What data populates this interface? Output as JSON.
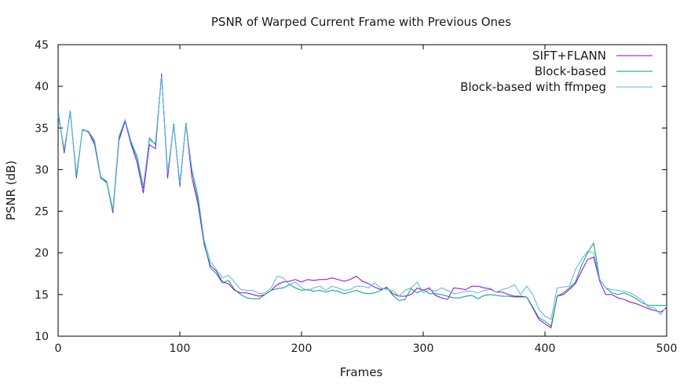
{
  "chart_data": {
    "type": "line",
    "title": "PSNR of Warped Current Frame with Previous Ones",
    "xlabel": "Frames",
    "ylabel": "PSNR (dB)",
    "xlim": [
      0,
      500
    ],
    "ylim": [
      10,
      45
    ],
    "xticks": [
      0,
      100,
      200,
      300,
      400,
      500
    ],
    "yticks": [
      10,
      15,
      20,
      25,
      30,
      35,
      40,
      45
    ],
    "grid": false,
    "legend_position": "top-right",
    "series": [
      {
        "name": "SIFT+FLANN",
        "color": "#9400d3",
        "x": [
          0,
          5,
          10,
          15,
          20,
          25,
          30,
          35,
          40,
          45,
          50,
          55,
          60,
          65,
          70,
          75,
          80,
          85,
          90,
          95,
          100,
          105,
          110,
          115,
          120,
          125,
          130,
          135,
          140,
          145,
          150,
          155,
          160,
          165,
          170,
          175,
          180,
          185,
          190,
          195,
          200,
          205,
          210,
          215,
          220,
          225,
          230,
          235,
          240,
          245,
          250,
          255,
          260,
          265,
          270,
          275,
          280,
          285,
          290,
          295,
          300,
          305,
          310,
          315,
          320,
          325,
          330,
          335,
          340,
          345,
          350,
          355,
          360,
          365,
          370,
          375,
          380,
          385,
          390,
          395,
          400,
          405,
          410,
          415,
          420,
          425,
          430,
          435,
          440,
          445,
          450,
          455,
          460,
          465,
          470,
          475,
          480,
          485,
          490,
          495,
          500
        ],
        "y": [
          37,
          32,
          37,
          29,
          34.8,
          34.5,
          33,
          29,
          28.5,
          24.8,
          33.5,
          35.8,
          33,
          30.8,
          27.2,
          33,
          32.5,
          41.5,
          29,
          35.5,
          28,
          35.5,
          29,
          25.8,
          21,
          18.5,
          17.8,
          16.5,
          16.3,
          15.5,
          15.2,
          15.2,
          15,
          14.8,
          15,
          15.5,
          16.2,
          16.5,
          16.6,
          16.8,
          16.5,
          16.8,
          16.7,
          16.8,
          16.8,
          17,
          16.8,
          16.6,
          16.8,
          17.2,
          16.6,
          16.3,
          15.9,
          15.6,
          15.8,
          15.1,
          14.8,
          14.8,
          15,
          15.8,
          15.5,
          15.8,
          14.9,
          14.6,
          14.4,
          15.8,
          15.7,
          15.6,
          16,
          16,
          15.8,
          15.7,
          15.3,
          15.3,
          15,
          14.8,
          14.8,
          14.7,
          13.4,
          12,
          11.5,
          11,
          14.8,
          15,
          15.6,
          16.3,
          17.8,
          19.2,
          19.5,
          16.6,
          15,
          15,
          14.6,
          14.4,
          14.1,
          13.9,
          13.6,
          13.3,
          13.1,
          12.9,
          13.4
        ]
      },
      {
        "name": "Block-based",
        "color": "#009e73",
        "x": [
          0,
          5,
          10,
          15,
          20,
          25,
          30,
          35,
          40,
          45,
          50,
          55,
          60,
          65,
          70,
          75,
          80,
          85,
          90,
          95,
          100,
          105,
          110,
          115,
          120,
          125,
          130,
          135,
          140,
          145,
          150,
          155,
          160,
          165,
          170,
          175,
          180,
          185,
          190,
          195,
          200,
          205,
          210,
          215,
          220,
          225,
          230,
          235,
          240,
          245,
          250,
          255,
          260,
          265,
          270,
          275,
          280,
          285,
          290,
          295,
          300,
          305,
          310,
          315,
          320,
          325,
          330,
          335,
          340,
          345,
          350,
          355,
          360,
          365,
          370,
          375,
          380,
          385,
          390,
          395,
          400,
          405,
          410,
          415,
          420,
          425,
          430,
          435,
          440,
          445,
          450,
          455,
          460,
          465,
          470,
          475,
          480,
          485,
          490,
          495,
          500
        ],
        "y": [
          36.8,
          32.2,
          37,
          29.2,
          34.8,
          34.6,
          33.3,
          29,
          28.4,
          25,
          33.8,
          36,
          33.2,
          31.3,
          27.8,
          33.8,
          33,
          41.3,
          29.5,
          35.5,
          28.2,
          35.6,
          29.8,
          26.3,
          21.2,
          18.2,
          17.5,
          16.4,
          16.7,
          15.6,
          15,
          14.6,
          14.5,
          14.5,
          15,
          15.5,
          15.7,
          15.8,
          16.2,
          15.8,
          15.5,
          15.6,
          15.4,
          15.5,
          15.3,
          15.5,
          15.4,
          15.1,
          15.3,
          15.5,
          15.2,
          15.1,
          15.2,
          15.5,
          15.9,
          14.9,
          14.3,
          14.4,
          15.7,
          15.2,
          15.6,
          15.1,
          15.1,
          15,
          14.8,
          14.6,
          14.6,
          14.8,
          14.9,
          14.5,
          14.9,
          15,
          14.9,
          14.8,
          14.8,
          14.7,
          14.7,
          14.7,
          13.5,
          12.2,
          11.8,
          11.2,
          14.8,
          15.2,
          15.8,
          16.5,
          18.5,
          20,
          21.2,
          16.8,
          15.8,
          15.2,
          15,
          15.2,
          14.9,
          14.5,
          14,
          13.7,
          13.7,
          13.7,
          13.7
        ]
      },
      {
        "name": "Block-based with ffmpeg",
        "color": "#56b4e9",
        "x": [
          0,
          5,
          10,
          15,
          20,
          25,
          30,
          35,
          40,
          45,
          50,
          55,
          60,
          65,
          70,
          75,
          80,
          85,
          90,
          95,
          100,
          105,
          110,
          115,
          120,
          125,
          130,
          135,
          140,
          145,
          150,
          155,
          160,
          165,
          170,
          175,
          180,
          185,
          190,
          195,
          200,
          205,
          210,
          215,
          220,
          225,
          230,
          235,
          240,
          245,
          250,
          255,
          260,
          265,
          270,
          275,
          280,
          285,
          290,
          295,
          300,
          305,
          310,
          315,
          320,
          325,
          330,
          335,
          340,
          345,
          350,
          355,
          360,
          365,
          370,
          375,
          380,
          385,
          390,
          395,
          400,
          405,
          410,
          415,
          420,
          425,
          430,
          435,
          440,
          445,
          450,
          455,
          460,
          465,
          470,
          475,
          480,
          485,
          490,
          495,
          500
        ],
        "y": [
          36.5,
          32.5,
          36.8,
          29.5,
          34.7,
          34.6,
          33.5,
          29.2,
          28.6,
          25.2,
          34,
          36,
          33.4,
          31.6,
          28,
          33.5,
          33.2,
          41.2,
          29.6,
          35.3,
          28.4,
          35.4,
          30,
          26.8,
          21.5,
          19,
          18,
          17,
          17.3,
          16.5,
          15.6,
          15.5,
          15.5,
          15.1,
          15.2,
          15.8,
          17.2,
          17,
          16.2,
          16.5,
          15.8,
          15.5,
          15.8,
          16,
          15.5,
          16,
          15.8,
          15.5,
          15.6,
          16,
          16,
          15.8,
          16.4,
          15.8,
          15.6,
          15.5,
          14.8,
          15.5,
          15.8,
          16.5,
          15.2,
          15.6,
          15.4,
          15.8,
          15.5,
          15.1,
          15.2,
          15.4,
          15.4,
          15.2,
          15.5,
          15.6,
          15.3,
          15.6,
          15.8,
          16.2,
          15,
          16,
          15,
          13.2,
          12.4,
          12,
          15.8,
          15.9,
          16,
          18,
          19.2,
          20.2,
          20,
          16.8,
          15.8,
          15.6,
          15.5,
          15.4,
          15.2,
          14.8,
          14.3,
          13.5,
          13.4,
          12.6,
          13.6
        ]
      }
    ]
  }
}
